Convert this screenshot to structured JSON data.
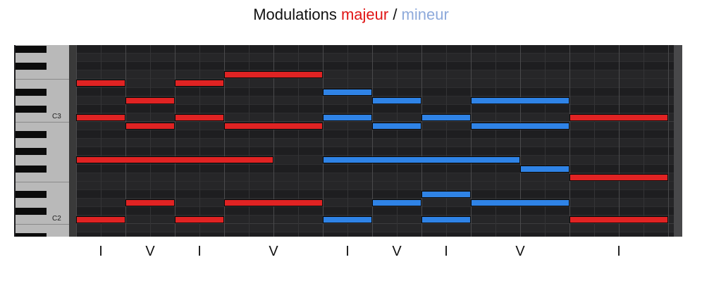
{
  "title": {
    "prefix": "Modulations ",
    "major": "majeur",
    "sep": " / ",
    "minor": "mineur"
  },
  "colors": {
    "major": "#e02323",
    "minor": "#2f83e6",
    "minor_title": "#8eaadb"
  },
  "octave_labels": [
    {
      "text": "C3",
      "pitch": 48
    },
    {
      "text": "C2",
      "pitch": 36
    }
  ],
  "chords": [
    "I",
    "V",
    "I",
    "V",
    "I",
    "V",
    "I",
    "V",
    "I"
  ],
  "notes": [
    {
      "start": 0,
      "end": 2,
      "pitch": 52,
      "mode": "major"
    },
    {
      "start": 0,
      "end": 2,
      "pitch": 48,
      "mode": "major"
    },
    {
      "start": 0,
      "end": 8,
      "pitch": 43,
      "mode": "major"
    },
    {
      "start": 0,
      "end": 2,
      "pitch": 36,
      "mode": "major"
    },
    {
      "start": 2,
      "end": 4,
      "pitch": 50,
      "mode": "major"
    },
    {
      "start": 2,
      "end": 4,
      "pitch": 47,
      "mode": "major"
    },
    {
      "start": 2,
      "end": 4,
      "pitch": 38,
      "mode": "major"
    },
    {
      "start": 4,
      "end": 6,
      "pitch": 52,
      "mode": "major"
    },
    {
      "start": 4,
      "end": 6,
      "pitch": 48,
      "mode": "major"
    },
    {
      "start": 4,
      "end": 6,
      "pitch": 36,
      "mode": "major"
    },
    {
      "start": 6,
      "end": 10,
      "pitch": 53,
      "mode": "major"
    },
    {
      "start": 6,
      "end": 10,
      "pitch": 47,
      "mode": "major"
    },
    {
      "start": 6,
      "end": 10,
      "pitch": 38,
      "mode": "major"
    },
    {
      "start": 10,
      "end": 12,
      "pitch": 51,
      "mode": "minor"
    },
    {
      "start": 10,
      "end": 12,
      "pitch": 48,
      "mode": "minor"
    },
    {
      "start": 10,
      "end": 18,
      "pitch": 43,
      "mode": "minor"
    },
    {
      "start": 10,
      "end": 12,
      "pitch": 36,
      "mode": "minor"
    },
    {
      "start": 12,
      "end": 14,
      "pitch": 50,
      "mode": "minor"
    },
    {
      "start": 12,
      "end": 14,
      "pitch": 47,
      "mode": "minor"
    },
    {
      "start": 12,
      "end": 14,
      "pitch": 38,
      "mode": "minor"
    },
    {
      "start": 14,
      "end": 16,
      "pitch": 48,
      "mode": "minor"
    },
    {
      "start": 14,
      "end": 16,
      "pitch": 39,
      "mode": "minor"
    },
    {
      "start": 14,
      "end": 16,
      "pitch": 36,
      "mode": "minor"
    },
    {
      "start": 16,
      "end": 20,
      "pitch": 50,
      "mode": "minor"
    },
    {
      "start": 16,
      "end": 20,
      "pitch": 47,
      "mode": "minor"
    },
    {
      "start": 16,
      "end": 20,
      "pitch": 38,
      "mode": "minor"
    },
    {
      "start": 18,
      "end": 20,
      "pitch": 42,
      "mode": "minor"
    },
    {
      "start": 20,
      "end": 24,
      "pitch": 48,
      "mode": "major"
    },
    {
      "start": 20,
      "end": 24,
      "pitch": 41,
      "mode": "major"
    },
    {
      "start": 20,
      "end": 24,
      "pitch": 36,
      "mode": "major"
    }
  ]
}
